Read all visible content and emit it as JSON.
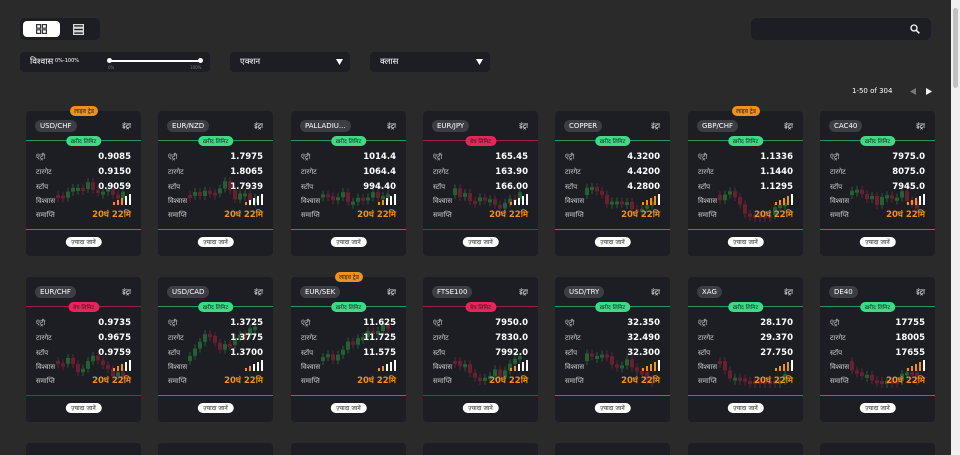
{
  "filters": {
    "confidence_label": "विश्वास",
    "confidence_range": "0%-100%",
    "slider_min": "0%",
    "slider_max": "100%",
    "action": "एक्शन",
    "class": "क्लास"
  },
  "pagination": {
    "range": "1-50 of 304"
  },
  "card_labels": {
    "duration": "इंट्रा",
    "entry": "एंट्री",
    "target": "टारगेट",
    "stop": "स्टॉप",
    "confidence": "विश्वास",
    "expiry": "समाप्ति",
    "more": "ज़्यादा जानें"
  },
  "cards": [
    {
      "symbol": "USD/CHF",
      "tag": "लाइव ट्रेड",
      "status": "ख़रीद लिमिट",
      "status_color": "#3ddc84",
      "entry": "0.9085",
      "target": "0.9150",
      "stop": "0.9059",
      "confidence": 3,
      "expiry": "20घं 22मि"
    },
    {
      "symbol": "EUR/NZD",
      "status": "ख़रीद लिमिट",
      "status_color": "#3ddc84",
      "entry": "1.7975",
      "target": "1.8065",
      "stop": "1.7939",
      "confidence": 1,
      "expiry": "20घं 22मि"
    },
    {
      "symbol": "PALLADIU...",
      "status": "ख़रीद लिमिट",
      "status_color": "#3ddc84",
      "entry": "1014.4",
      "target": "1064.4",
      "stop": "994.40",
      "confidence": 2,
      "expiry": "20घं 22मि"
    },
    {
      "symbol": "EUR/JPY",
      "status": "बेच लिमिट",
      "status_color": "#e8245a",
      "entry": "165.45",
      "target": "163.90",
      "stop": "166.00",
      "confidence": 1,
      "expiry": "20घं 22मि"
    },
    {
      "symbol": "COPPER",
      "status": "ख़रीद लिमिट",
      "status_color": "#3ddc84",
      "entry": "4.3200",
      "target": "4.4200",
      "stop": "4.2800",
      "confidence": 4,
      "expiry": "20घं 22मि"
    },
    {
      "symbol": "GBP/CHF",
      "tag": "लाइव ट्रेड",
      "status": "ख़रीद लिमिट",
      "status_color": "#3ddc84",
      "entry": "1.1336",
      "target": "1.1440",
      "stop": "1.1295",
      "confidence": 4,
      "expiry": "20घं 22मि"
    },
    {
      "symbol": "CAC40",
      "status": "ख़रीद लिमिट",
      "status_color": "#3ddc84",
      "entry": "7975.0",
      "target": "8075.0",
      "stop": "7945.0",
      "confidence": 3,
      "expiry": "20घं 22मि"
    },
    {
      "symbol": "EUR/CHF",
      "status": "बेच लिमिट",
      "status_color": "#e8245a",
      "entry": "0.9735",
      "target": "0.9675",
      "stop": "0.9759",
      "confidence": 3,
      "expiry": "20घं 22मि"
    },
    {
      "symbol": "USD/CAD",
      "status": "ख़रीद लिमिट",
      "status_color": "#3ddc84",
      "entry": "1.3725",
      "target": "1.3775",
      "stop": "1.3700",
      "confidence": 2,
      "expiry": "20घं 22मि"
    },
    {
      "symbol": "EUR/SEK",
      "tag": "लाइव ट्रेड",
      "status": "ख़रीद लिमिट",
      "status_color": "#3ddc84",
      "entry": "11.625",
      "target": "11.725",
      "stop": "11.575",
      "confidence": 2,
      "expiry": "20घं 22मि"
    },
    {
      "symbol": "FTSE100",
      "status": "बेच लिमिट",
      "status_color": "#e8245a",
      "entry": "7950.0",
      "target": "7830.0",
      "stop": "7992.0",
      "confidence": 2,
      "expiry": "20घं 22मि"
    },
    {
      "symbol": "USD/TRY",
      "status": "ख़रीद लिमिट",
      "status_color": "#3ddc84",
      "entry": "32.350",
      "target": "32.490",
      "stop": "32.300",
      "confidence": 4,
      "expiry": "20घं 22मि"
    },
    {
      "symbol": "XAG",
      "status": "ख़रीद लिमिट",
      "status_color": "#3ddc84",
      "entry": "28.170",
      "target": "29.370",
      "stop": "27.750",
      "confidence": 4,
      "expiry": "20घं 22मि"
    },
    {
      "symbol": "DE40",
      "status": "ख़रीद लिमिट",
      "status_color": "#3ddc84",
      "entry": "17755",
      "target": "18005",
      "stop": "17655",
      "confidence": 4,
      "expiry": "20घं 22मि"
    }
  ]
}
